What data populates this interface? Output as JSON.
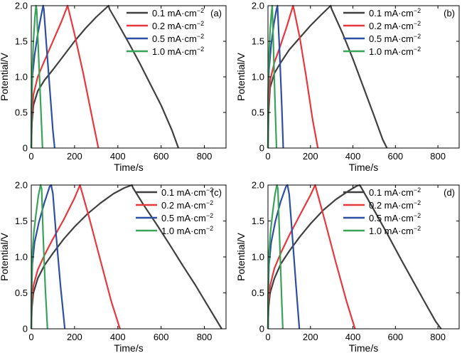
{
  "figure": {
    "colors": {
      "s1": "#404040",
      "s2": "#e8383d",
      "s3": "#2f4fa3",
      "s4": "#3aa35a"
    }
  },
  "chart_data": [
    {
      "type": "line",
      "panel_label": "(a)",
      "xlabel": "Time/s",
      "ylabel": "Potential/V",
      "xlim": [
        0,
        900
      ],
      "ylim": [
        0,
        2.0
      ],
      "xticks": [
        0,
        200,
        400,
        600,
        800
      ],
      "yticks": [
        0,
        0.5,
        1.0,
        1.5,
        2.0
      ],
      "legend_position": "top-right",
      "series": [
        {
          "name": "0.1 mA·cm−2",
          "color": "#404040",
          "x": [
            0,
            3,
            10,
            30,
            60,
            100,
            150,
            200,
            250,
            300,
            357,
            362,
            400,
            450,
            500,
            550,
            600,
            650,
            680
          ],
          "y": [
            0,
            0.35,
            0.6,
            0.8,
            0.95,
            1.1,
            1.3,
            1.5,
            1.68,
            1.84,
            2.0,
            1.95,
            1.75,
            1.48,
            1.2,
            0.9,
            0.6,
            0.25,
            0
          ]
        },
        {
          "name": "0.2 mA·cm−2",
          "color": "#e8383d",
          "x": [
            0,
            2,
            10,
            30,
            60,
            100,
            140,
            168,
            172,
            200,
            240,
            280,
            310
          ],
          "y": [
            0,
            0.4,
            0.75,
            1.0,
            1.22,
            1.5,
            1.78,
            2.0,
            1.95,
            1.6,
            1.05,
            0.45,
            0
          ]
        },
        {
          "name": "0.5 mA·cm−2",
          "color": "#2f4fa3",
          "x": [
            0,
            1,
            5,
            15,
            30,
            45,
            55,
            58,
            70,
            85,
            100,
            108
          ],
          "y": [
            0,
            0.5,
            1.0,
            1.3,
            1.6,
            1.85,
            2.0,
            1.95,
            1.45,
            0.85,
            0.25,
            0
          ]
        },
        {
          "name": "1.0 mA·cm−2",
          "color": "#3aa35a",
          "x": [
            0,
            1,
            5,
            10,
            17,
            22,
            25,
            35,
            45,
            52
          ],
          "y": [
            0,
            0.6,
            1.1,
            1.5,
            1.85,
            2.0,
            1.95,
            1.2,
            0.5,
            0
          ]
        }
      ]
    },
    {
      "type": "line",
      "panel_label": "(b)",
      "xlabel": "Time/s",
      "ylabel": "Potential/V",
      "xlim": [
        0,
        900
      ],
      "ylim": [
        0,
        2.0
      ],
      "xticks": [
        0,
        200,
        400,
        600,
        800
      ],
      "yticks": [
        0,
        0.5,
        1.0,
        1.5,
        2.0
      ],
      "legend_position": "top-right",
      "series": [
        {
          "name": "0.1 mA·cm−2",
          "color": "#404040",
          "x": [
            0,
            3,
            10,
            30,
            60,
            100,
            150,
            200,
            250,
            295,
            300,
            350,
            400,
            450,
            500,
            540,
            560
          ],
          "y": [
            0,
            0.5,
            0.85,
            1.05,
            1.2,
            1.38,
            1.55,
            1.72,
            1.87,
            2.0,
            1.95,
            1.62,
            1.25,
            0.85,
            0.45,
            0.12,
            0
          ]
        },
        {
          "name": "0.2 mA·cm−2",
          "color": "#e8383d",
          "x": [
            0,
            2,
            10,
            30,
            60,
            90,
            118,
            122,
            150,
            180,
            210,
            235
          ],
          "y": [
            0,
            0.55,
            0.95,
            1.2,
            1.45,
            1.72,
            2.0,
            1.95,
            1.55,
            1.0,
            0.4,
            0
          ]
        },
        {
          "name": "0.5 mA·cm−2",
          "color": "#2f4fa3",
          "x": [
            0,
            1,
            5,
            15,
            28,
            40,
            45,
            55,
            65,
            72
          ],
          "y": [
            0,
            0.7,
            1.1,
            1.45,
            1.75,
            1.95,
            2.0,
            1.35,
            0.6,
            0
          ]
        },
        {
          "name": "1.0 mA·cm−2",
          "color": "#3aa35a",
          "x": [
            0,
            1,
            5,
            10,
            17,
            20,
            25,
            32,
            40
          ],
          "y": [
            0,
            0.8,
            1.3,
            1.65,
            1.92,
            2.0,
            1.5,
            0.75,
            0
          ]
        }
      ]
    },
    {
      "type": "line",
      "panel_label": "(c)",
      "xlabel": "Time/s",
      "ylabel": "Potential/V",
      "xlim": [
        0,
        900
      ],
      "ylim": [
        0,
        2.0
      ],
      "xticks": [
        0,
        200,
        400,
        600,
        800
      ],
      "yticks": [
        0,
        0.5,
        1.0,
        1.5,
        2.0
      ],
      "legend_position": "top-right",
      "series": [
        {
          "name": "0.1 mA·cm−2",
          "color": "#404040",
          "x": [
            0,
            3,
            10,
            30,
            60,
            100,
            150,
            200,
            260,
            320,
            380,
            430,
            465,
            470,
            520,
            580,
            640,
            700,
            760,
            820,
            880
          ],
          "y": [
            0,
            0.3,
            0.5,
            0.7,
            0.88,
            1.05,
            1.25,
            1.42,
            1.6,
            1.75,
            1.88,
            1.96,
            2.0,
            1.96,
            1.72,
            1.45,
            1.17,
            0.88,
            0.6,
            0.3,
            0
          ]
        },
        {
          "name": "0.2 mA·cm−2",
          "color": "#e8383d",
          "x": [
            0,
            2,
            10,
            30,
            60,
            100,
            150,
            200,
            225,
            230,
            270,
            320,
            370,
            410
          ],
          "y": [
            0,
            0.35,
            0.6,
            0.82,
            1.02,
            1.25,
            1.52,
            1.82,
            2.0,
            1.95,
            1.52,
            0.95,
            0.38,
            0
          ]
        },
        {
          "name": "0.5 mA·cm−2",
          "color": "#2f4fa3",
          "x": [
            0,
            1,
            5,
            15,
            35,
            60,
            85,
            92,
            100,
            115,
            135,
            155
          ],
          "y": [
            0,
            0.45,
            0.9,
            1.2,
            1.48,
            1.75,
            1.98,
            2.0,
            1.88,
            1.3,
            0.6,
            0
          ]
        },
        {
          "name": "1.0 mA·cm−2",
          "color": "#3aa35a",
          "x": [
            0,
            1,
            5,
            12,
            22,
            33,
            43,
            48,
            55,
            65,
            75
          ],
          "y": [
            0,
            0.55,
            1.05,
            1.35,
            1.6,
            1.85,
            2.0,
            1.95,
            1.3,
            0.55,
            0
          ]
        }
      ]
    },
    {
      "type": "line",
      "panel_label": "(d)",
      "xlabel": "Time/s",
      "ylabel": "Potential/V",
      "xlim": [
        0,
        900
      ],
      "ylim": [
        0,
        2.0
      ],
      "xticks": [
        0,
        200,
        400,
        600,
        800
      ],
      "yticks": [
        0,
        0.5,
        1.0,
        1.5,
        2.0
      ],
      "legend_position": "top-right",
      "series": [
        {
          "name": "0.1 mA·cm−2",
          "color": "#404040",
          "x": [
            0,
            3,
            10,
            30,
            60,
            100,
            150,
            200,
            260,
            320,
            380,
            420,
            432,
            440,
            500,
            560,
            620,
            680,
            740,
            790,
            815
          ],
          "y": [
            0,
            0.3,
            0.5,
            0.7,
            0.9,
            1.08,
            1.28,
            1.46,
            1.65,
            1.8,
            1.92,
            1.99,
            2.0,
            1.96,
            1.65,
            1.33,
            1.0,
            0.68,
            0.36,
            0.1,
            0
          ]
        },
        {
          "name": "0.2 mA·cm−2",
          "color": "#e8383d",
          "x": [
            0,
            2,
            10,
            30,
            60,
            100,
            150,
            200,
            222,
            227,
            270,
            320,
            370,
            410
          ],
          "y": [
            0,
            0.35,
            0.6,
            0.84,
            1.05,
            1.3,
            1.58,
            1.86,
            2.0,
            1.95,
            1.48,
            0.92,
            0.38,
            0
          ]
        },
        {
          "name": "0.5 mA·cm−2",
          "color": "#2f4fa3",
          "x": [
            0,
            1,
            5,
            15,
            35,
            60,
            85,
            92,
            100,
            115,
            132,
            148
          ],
          "y": [
            0,
            0.45,
            0.9,
            1.2,
            1.5,
            1.77,
            1.98,
            2.0,
            1.87,
            1.28,
            0.6,
            0
          ]
        },
        {
          "name": "1.0 mA·cm−2",
          "color": "#3aa35a",
          "x": [
            0,
            1,
            5,
            12,
            22,
            33,
            42,
            47,
            55,
            65,
            70
          ],
          "y": [
            0,
            0.55,
            1.05,
            1.35,
            1.62,
            1.87,
            2.0,
            1.95,
            1.25,
            0.38,
            0
          ]
        }
      ]
    }
  ]
}
